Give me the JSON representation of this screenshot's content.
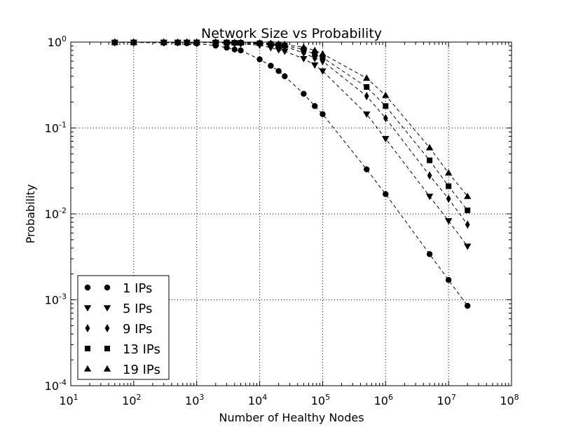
{
  "chart_data": {
    "type": "scatter",
    "title": "Network Size vs Probability",
    "xlabel": "Number of Healthy Nodes",
    "ylabel": "Probability",
    "xscale": "log",
    "yscale": "log",
    "xlim": [
      10,
      100000000
    ],
    "ylim": [
      0.0001,
      1
    ],
    "x_ticks": [
      {
        "base": "10",
        "exp": "1"
      },
      {
        "base": "10",
        "exp": "2"
      },
      {
        "base": "10",
        "exp": "3"
      },
      {
        "base": "10",
        "exp": "4"
      },
      {
        "base": "10",
        "exp": "5"
      },
      {
        "base": "10",
        "exp": "6"
      },
      {
        "base": "10",
        "exp": "7"
      },
      {
        "base": "10",
        "exp": "8"
      }
    ],
    "y_ticks": [
      {
        "base": "10",
        "exp": "-4"
      },
      {
        "base": "10",
        "exp": "-3"
      },
      {
        "base": "10",
        "exp": "-2"
      },
      {
        "base": "10",
        "exp": "-1"
      },
      {
        "base": "10",
        "exp": "0"
      }
    ],
    "grid": true,
    "legend_position": "lower-left",
    "series": [
      {
        "name": "1 IPs",
        "marker": "circle",
        "x": [
          50,
          100,
          300,
          500,
          700,
          1000,
          2000,
          3000,
          4000,
          5000,
          10000,
          15000,
          20000,
          25000,
          50000,
          75000,
          100000,
          500000,
          1000000,
          5000000,
          10000000,
          20000000
        ],
        "y": [
          0.99,
          0.99,
          0.98,
          0.98,
          0.97,
          0.96,
          0.91,
          0.86,
          0.82,
          0.8,
          0.63,
          0.53,
          0.46,
          0.4,
          0.25,
          0.18,
          0.145,
          0.033,
          0.017,
          0.0034,
          0.0017,
          0.00085
        ]
      },
      {
        "name": "5 IPs",
        "marker": "triangle-down",
        "x": [
          50,
          100,
          300,
          500,
          700,
          1000,
          2000,
          3000,
          4000,
          5000,
          10000,
          15000,
          20000,
          25000,
          50000,
          75000,
          100000,
          500000,
          1000000,
          5000000,
          10000000,
          20000000
        ],
        "y": [
          0.99,
          0.99,
          0.99,
          0.99,
          0.99,
          0.99,
          0.98,
          0.97,
          0.96,
          0.95,
          0.92,
          0.86,
          0.81,
          0.78,
          0.64,
          0.54,
          0.46,
          0.145,
          0.075,
          0.016,
          0.0083,
          0.0042
        ]
      },
      {
        "name": "9 IPs",
        "marker": "thin-diamond",
        "x": [
          50,
          100,
          300,
          500,
          700,
          1000,
          2000,
          3000,
          4000,
          5000,
          10000,
          15000,
          20000,
          25000,
          50000,
          75000,
          100000,
          500000,
          1000000,
          5000000,
          10000000,
          20000000
        ],
        "y": [
          0.99,
          0.99,
          0.99,
          0.99,
          0.99,
          0.99,
          0.99,
          0.98,
          0.98,
          0.97,
          0.95,
          0.93,
          0.91,
          0.89,
          0.75,
          0.65,
          0.6,
          0.235,
          0.13,
          0.028,
          0.015,
          0.0075
        ]
      },
      {
        "name": "13 IPs",
        "marker": "square",
        "x": [
          50,
          100,
          300,
          500,
          700,
          1000,
          2000,
          3000,
          4000,
          5000,
          10000,
          15000,
          20000,
          25000,
          50000,
          75000,
          100000,
          500000,
          1000000,
          5000000,
          10000000,
          20000000
        ],
        "y": [
          0.99,
          0.99,
          0.99,
          0.99,
          0.99,
          0.99,
          0.99,
          0.99,
          0.98,
          0.98,
          0.97,
          0.95,
          0.93,
          0.91,
          0.82,
          0.72,
          0.66,
          0.3,
          0.18,
          0.042,
          0.021,
          0.011
        ]
      },
      {
        "name": "19 IPs",
        "marker": "triangle-up",
        "x": [
          50,
          100,
          300,
          500,
          700,
          1000,
          2000,
          3000,
          4000,
          5000,
          10000,
          15000,
          20000,
          25000,
          50000,
          75000,
          100000,
          500000,
          1000000,
          5000000,
          10000000,
          20000000
        ],
        "y": [
          0.99,
          0.99,
          0.99,
          0.99,
          0.99,
          0.99,
          0.99,
          0.99,
          0.99,
          0.99,
          0.98,
          0.97,
          0.95,
          0.94,
          0.87,
          0.8,
          0.73,
          0.38,
          0.24,
          0.059,
          0.03,
          0.016
        ]
      }
    ]
  }
}
